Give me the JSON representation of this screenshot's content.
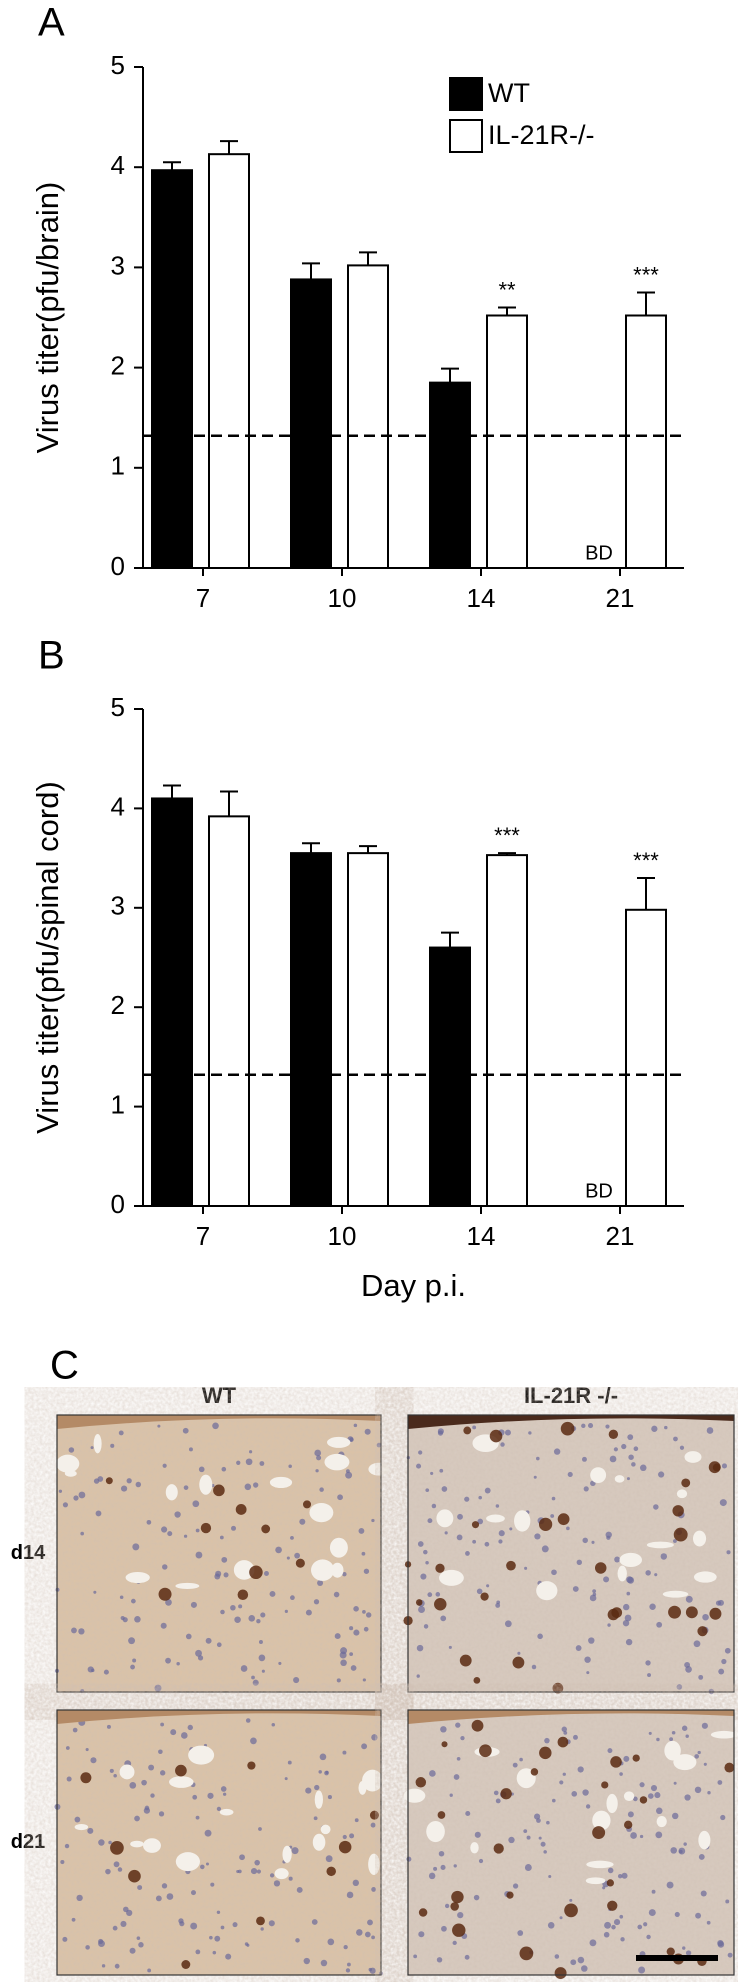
{
  "chart_data": [
    {
      "type": "bar",
      "panel_label": "A",
      "ylabel": "Virus titer(pfu/brain)",
      "categories": [
        "7",
        "10",
        "14",
        "21"
      ],
      "series": [
        {
          "name": "WT",
          "color": "#000000",
          "values": [
            3.97,
            2.88,
            1.85,
            null
          ],
          "errors": [
            0.08,
            0.16,
            0.14,
            null
          ],
          "value_labels": [
            null,
            null,
            null,
            "BD"
          ]
        },
        {
          "name": "IL-21R-/-",
          "color": "#ffffff",
          "values": [
            4.13,
            3.02,
            2.52,
            2.52
          ],
          "errors": [
            0.13,
            0.13,
            0.08,
            0.23
          ],
          "value_annotations": [
            null,
            null,
            "**",
            "***"
          ]
        }
      ],
      "ylim": [
        0,
        5
      ],
      "yticks": [
        0,
        1,
        2,
        3,
        4,
        5
      ],
      "detection_limit": 1.32,
      "legend": "upper right"
    },
    {
      "type": "bar",
      "panel_label": "B",
      "ylabel": "Virus titer(pfu/spinal cord)",
      "xlabel": "Day p.i.",
      "categories": [
        "7",
        "10",
        "14",
        "21"
      ],
      "series": [
        {
          "color": "#000000",
          "values": [
            4.1,
            3.55,
            2.6,
            null
          ],
          "errors": [
            0.13,
            0.1,
            0.15,
            null
          ],
          "value_labels": [
            null,
            null,
            null,
            "BD"
          ]
        },
        {
          "color": "#ffffff",
          "values": [
            3.92,
            3.55,
            3.53,
            2.98
          ],
          "errors": [
            0.25,
            0.07,
            0.02,
            0.32
          ],
          "value_annotations": [
            null,
            null,
            "***",
            "***"
          ]
        }
      ],
      "ylim": [
        0,
        5
      ],
      "yticks": [
        0,
        1,
        2,
        3,
        4,
        5
      ],
      "detection_limit": 1.32
    }
  ],
  "panel_c": {
    "panel_label": "C",
    "columns": [
      "WT",
      "IL-21R -/-"
    ],
    "rows": [
      "d14",
      "d21"
    ]
  }
}
